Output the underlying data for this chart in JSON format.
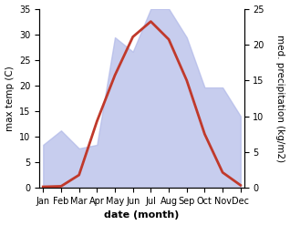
{
  "months": [
    "Jan",
    "Feb",
    "Mar",
    "Apr",
    "May",
    "Jun",
    "Jul",
    "Aug",
    "Sep",
    "Oct",
    "Nov",
    "Dec"
  ],
  "temperature": [
    0.2,
    0.3,
    2.5,
    13.0,
    22.0,
    29.5,
    32.5,
    29.0,
    21.0,
    10.5,
    3.0,
    0.5
  ],
  "precipitation": [
    6.0,
    8.0,
    5.5,
    6.0,
    21.0,
    19.0,
    25.0,
    25.0,
    21.0,
    14.0,
    14.0,
    10.0
  ],
  "temp_color": "#c0392b",
  "precip_fill_color": "#b0b8e8",
  "precip_fill_alpha": 0.7,
  "temp_ylim": [
    0,
    35
  ],
  "precip_ylim": [
    0,
    25
  ],
  "temp_yticks": [
    0,
    5,
    10,
    15,
    20,
    25,
    30,
    35
  ],
  "precip_yticks": [
    0,
    5,
    10,
    15,
    20,
    25
  ],
  "xlabel": "date (month)",
  "ylabel_left": "max temp (C)",
  "ylabel_right": "med. precipitation (kg/m2)",
  "bg_color": "#ffffff",
  "label_fontsize": 7.5,
  "tick_fontsize": 7,
  "xlabel_fontsize": 8,
  "linewidth": 2.0
}
